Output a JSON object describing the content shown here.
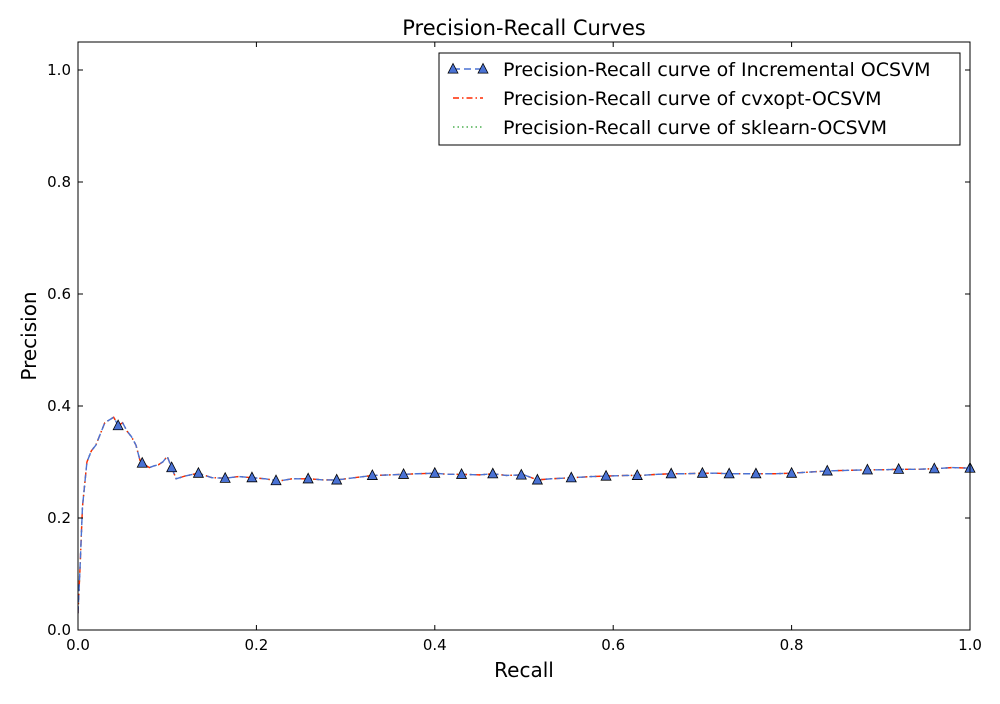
{
  "chart_data": {
    "type": "line",
    "title": "Precision-Recall Curves",
    "xlabel": "Recall",
    "ylabel": "Precision",
    "xlim": [
      0.0,
      1.0
    ],
    "ylim": [
      0.0,
      1.05
    ],
    "xticks": [
      0.0,
      0.2,
      0.4,
      0.6,
      0.8,
      1.0
    ],
    "xtick_labels": [
      "0.0",
      "0.2",
      "0.4",
      "0.6",
      "0.8",
      "1.0"
    ],
    "yticks": [
      0.0,
      0.2,
      0.4,
      0.6,
      0.8,
      1.0
    ],
    "ytick_labels": [
      "0.0",
      "0.2",
      "0.4",
      "0.6",
      "0.8",
      "1.0"
    ],
    "grid": false,
    "legend_position": "top-right",
    "x": [
      0.0,
      0.002,
      0.005,
      0.01,
      0.015,
      0.02,
      0.025,
      0.03,
      0.035,
      0.04,
      0.045,
      0.05,
      0.055,
      0.06,
      0.065,
      0.07,
      0.075,
      0.08,
      0.085,
      0.09,
      0.095,
      0.1,
      0.105,
      0.11,
      0.12,
      0.135,
      0.15,
      0.165,
      0.18,
      0.195,
      0.21,
      0.225,
      0.24,
      0.26,
      0.275,
      0.29,
      0.31,
      0.33,
      0.35,
      0.365,
      0.38,
      0.4,
      0.415,
      0.43,
      0.45,
      0.465,
      0.48,
      0.5,
      0.515,
      0.53,
      0.555,
      0.575,
      0.595,
      0.615,
      0.63,
      0.65,
      0.665,
      0.68,
      0.7,
      0.715,
      0.73,
      0.745,
      0.76,
      0.78,
      0.8,
      0.82,
      0.84,
      0.86,
      0.885,
      0.9,
      0.92,
      0.94,
      0.96,
      0.98,
      1.0
    ],
    "series": [
      {
        "name": "Precision-Recall curve of Incremental OCSVM",
        "color": "#4a72d4",
        "line_style": "dashed",
        "marker": "triangle",
        "markers_at": [
          0.045,
          0.072,
          0.105,
          0.135,
          0.165,
          0.195,
          0.222,
          0.258,
          0.29,
          0.33,
          0.365,
          0.4,
          0.43,
          0.465,
          0.497,
          0.515,
          0.553,
          0.592,
          0.627,
          0.665,
          0.7,
          0.73,
          0.76,
          0.8,
          0.84,
          0.885,
          0.92,
          0.96,
          1.0
        ],
        "values": [
          0.03,
          0.1,
          0.22,
          0.3,
          0.32,
          0.33,
          0.35,
          0.37,
          0.375,
          0.38,
          0.365,
          0.37,
          0.355,
          0.345,
          0.33,
          0.3,
          0.295,
          0.29,
          0.293,
          0.295,
          0.3,
          0.31,
          0.29,
          0.27,
          0.275,
          0.28,
          0.272,
          0.271,
          0.274,
          0.272,
          0.27,
          0.266,
          0.27,
          0.27,
          0.268,
          0.268,
          0.272,
          0.276,
          0.277,
          0.278,
          0.279,
          0.28,
          0.278,
          0.278,
          0.277,
          0.279,
          0.276,
          0.277,
          0.268,
          0.27,
          0.272,
          0.274,
          0.275,
          0.276,
          0.276,
          0.278,
          0.279,
          0.279,
          0.28,
          0.28,
          0.279,
          0.279,
          0.279,
          0.279,
          0.28,
          0.282,
          0.284,
          0.285,
          0.286,
          0.286,
          0.287,
          0.287,
          0.288,
          0.29,
          0.289
        ]
      },
      {
        "name": "Precision-Recall curve of cvxopt-OCSVM",
        "color": "#ff2a00",
        "line_style": "dashdot",
        "values": [
          0.03,
          0.1,
          0.22,
          0.3,
          0.32,
          0.33,
          0.35,
          0.37,
          0.375,
          0.38,
          0.365,
          0.37,
          0.355,
          0.345,
          0.33,
          0.3,
          0.295,
          0.29,
          0.293,
          0.295,
          0.3,
          0.31,
          0.29,
          0.27,
          0.275,
          0.28,
          0.272,
          0.271,
          0.274,
          0.272,
          0.27,
          0.266,
          0.27,
          0.27,
          0.268,
          0.268,
          0.272,
          0.276,
          0.277,
          0.278,
          0.279,
          0.28,
          0.278,
          0.278,
          0.277,
          0.279,
          0.276,
          0.277,
          0.268,
          0.27,
          0.272,
          0.274,
          0.275,
          0.276,
          0.276,
          0.278,
          0.279,
          0.279,
          0.28,
          0.28,
          0.279,
          0.279,
          0.279,
          0.279,
          0.28,
          0.282,
          0.284,
          0.285,
          0.286,
          0.286,
          0.287,
          0.287,
          0.288,
          0.29,
          0.289
        ]
      },
      {
        "name": "Precision-Recall curve of sklearn-OCSVM",
        "color": "#4caf50",
        "line_style": "dotted",
        "values": [
          0.03,
          0.1,
          0.22,
          0.3,
          0.32,
          0.33,
          0.35,
          0.37,
          0.375,
          0.38,
          0.365,
          0.37,
          0.355,
          0.345,
          0.33,
          0.3,
          0.295,
          0.29,
          0.293,
          0.295,
          0.3,
          0.31,
          0.29,
          0.27,
          0.275,
          0.28,
          0.272,
          0.271,
          0.274,
          0.272,
          0.27,
          0.266,
          0.27,
          0.27,
          0.268,
          0.268,
          0.272,
          0.276,
          0.277,
          0.278,
          0.279,
          0.28,
          0.278,
          0.278,
          0.277,
          0.279,
          0.276,
          0.277,
          0.268,
          0.27,
          0.272,
          0.274,
          0.275,
          0.276,
          0.276,
          0.278,
          0.279,
          0.279,
          0.28,
          0.28,
          0.279,
          0.279,
          0.279,
          0.279,
          0.28,
          0.282,
          0.284,
          0.285,
          0.286,
          0.286,
          0.287,
          0.287,
          0.288,
          0.29,
          0.289
        ]
      }
    ]
  }
}
